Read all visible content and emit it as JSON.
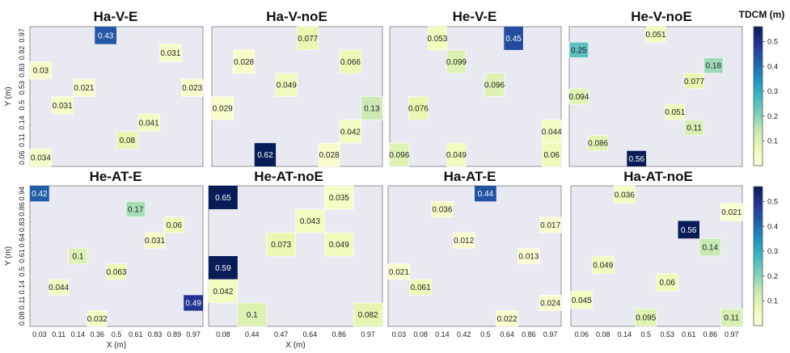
{
  "colorbar": {
    "title": "TDCM (m)",
    "ticks": [
      "0.1",
      "0.2",
      "0.3",
      "0.4",
      "0.5"
    ],
    "colors": [
      "#ffffd9",
      "#edf8b1",
      "#c7e9b4",
      "#7fcdbb",
      "#41b6c4",
      "#1d91c0",
      "#225ea8",
      "#253494",
      "#081d58"
    ],
    "range": [
      0,
      0.56
    ]
  },
  "chart_data": [
    {
      "type": "heatmap",
      "title": "Ha-V-E",
      "xticks": [],
      "yticks": [
        "0.97",
        "0.92",
        "0.83",
        "0.53",
        "0.5",
        "0.14",
        "0.11",
        "0.06"
      ],
      "xlabel": "",
      "ylabel": "Y (m)",
      "cells": [
        {
          "col": 3,
          "row": 0,
          "value": 0.43
        },
        {
          "col": 6,
          "row": 1,
          "value": 0.031
        },
        {
          "col": 0,
          "row": 2,
          "value": 0.03
        },
        {
          "col": 2,
          "row": 3,
          "value": 0.021
        },
        {
          "col": 7,
          "row": 3,
          "value": 0.023
        },
        {
          "col": 1,
          "row": 4,
          "value": 0.031
        },
        {
          "col": 5,
          "row": 5,
          "value": 0.041
        },
        {
          "col": 4,
          "row": 6,
          "value": 0.08
        },
        {
          "col": 0,
          "row": 7,
          "value": 0.034
        }
      ]
    },
    {
      "type": "heatmap",
      "title": "Ha-V-noE",
      "xticks": [],
      "yticks": [],
      "xlabel": "",
      "ylabel": "",
      "cells": [
        {
          "col": 4,
          "row": 0,
          "value": 0.077
        },
        {
          "col": 1,
          "row": 1,
          "value": 0.028
        },
        {
          "col": 6,
          "row": 1,
          "value": 0.066
        },
        {
          "col": 3,
          "row": 2,
          "value": 0.049
        },
        {
          "col": 0,
          "row": 3,
          "value": 0.029
        },
        {
          "col": 7,
          "row": 3,
          "value": 0.13
        },
        {
          "col": 6,
          "row": 4,
          "value": 0.042
        },
        {
          "col": 2,
          "row": 5,
          "value": 0.62
        },
        {
          "col": 5,
          "row": 5,
          "value": 0.028
        }
      ]
    },
    {
      "type": "heatmap",
      "title": "He-V-E",
      "xticks": [],
      "yticks": [],
      "xlabel": "",
      "ylabel": "",
      "cells": [
        {
          "col": 2,
          "row": 0,
          "value": 0.053
        },
        {
          "col": 6,
          "row": 0,
          "value": 0.45
        },
        {
          "col": 3,
          "row": 1,
          "value": 0.099
        },
        {
          "col": 5,
          "row": 2,
          "value": 0.096
        },
        {
          "col": 1,
          "row": 3,
          "value": 0.076
        },
        {
          "col": 8,
          "row": 4,
          "value": 0.044
        },
        {
          "col": 0,
          "row": 5,
          "value": 0.096
        },
        {
          "col": 3,
          "row": 5,
          "value": 0.049
        },
        {
          "col": 8,
          "row": 5,
          "value": 0.06
        }
      ]
    },
    {
      "type": "heatmap",
      "title": "He-V-noE",
      "xticks": [],
      "yticks": [],
      "xlabel": "",
      "ylabel": "",
      "cells": [
        {
          "col": 4,
          "row": 0,
          "value": 0.051
        },
        {
          "col": 0,
          "row": 1,
          "value": 0.25
        },
        {
          "col": 7,
          "row": 2,
          "value": 0.18
        },
        {
          "col": 6,
          "row": 3,
          "value": 0.077
        },
        {
          "col": 0,
          "row": 4,
          "value": 0.094
        },
        {
          "col": 5,
          "row": 5,
          "value": 0.051
        },
        {
          "col": 6,
          "row": 6,
          "value": 0.11
        },
        {
          "col": 1,
          "row": 7,
          "value": 0.086
        },
        {
          "col": 3,
          "row": 8,
          "value": 0.56
        }
      ]
    },
    {
      "type": "heatmap",
      "title": "He-AT-E",
      "xticks": [
        "0.03",
        "0.11",
        "0.14",
        "0.36",
        "0.5",
        "0.61",
        "0.83",
        "0.89",
        "0.97"
      ],
      "yticks": [
        "0.94",
        "0.86",
        "0.83",
        "0.64",
        "0.61",
        "0.5",
        "0.14",
        "0.11",
        "0.08"
      ],
      "xlabel": "X (m)",
      "ylabel": "Y (m)",
      "cells": [
        {
          "col": 0,
          "row": 0,
          "value": 0.42
        },
        {
          "col": 5,
          "row": 1,
          "value": 0.17
        },
        {
          "col": 7,
          "row": 2,
          "value": 0.06
        },
        {
          "col": 6,
          "row": 3,
          "value": 0.031
        },
        {
          "col": 2,
          "row": 4,
          "value": 0.1
        },
        {
          "col": 4,
          "row": 5,
          "value": 0.063
        },
        {
          "col": 1,
          "row": 6,
          "value": 0.044
        },
        {
          "col": 8,
          "row": 7,
          "value": 0.49
        },
        {
          "col": 3,
          "row": 8,
          "value": 0.032
        }
      ]
    },
    {
      "type": "heatmap",
      "title": "He-AT-noE",
      "xticks": [
        "0.08",
        "0.44",
        "0.47",
        "0.64",
        "0.86",
        "0.97"
      ],
      "yticks": [],
      "xlabel": "X (m)",
      "ylabel": "",
      "cells": [
        {
          "col": 0,
          "row": 0,
          "value": 0.65
        },
        {
          "col": 4,
          "row": 0,
          "value": 0.035
        },
        {
          "col": 3,
          "row": 1,
          "value": 0.043
        },
        {
          "col": 2,
          "row": 2,
          "value": 0.073
        },
        {
          "col": 4,
          "row": 2,
          "value": 0.049
        },
        {
          "col": 0,
          "row": 3,
          "value": 0.59
        },
        {
          "col": 0,
          "row": 4,
          "value": 0.042
        },
        {
          "col": 1,
          "row": 5,
          "value": 0.1
        },
        {
          "col": 5,
          "row": 5,
          "value": 0.082
        }
      ]
    },
    {
      "type": "heatmap",
      "title": "Ha-AT-E",
      "xticks": [
        "0.03",
        "0.08",
        "0.14",
        "0.42",
        "0.5",
        "0.64",
        "0.86",
        "0.97"
      ],
      "yticks": [],
      "xlabel": "",
      "ylabel": "",
      "cells": [
        {
          "col": 4,
          "row": 0,
          "value": 0.44
        },
        {
          "col": 2,
          "row": 1,
          "value": 0.036
        },
        {
          "col": 7,
          "row": 2,
          "value": 0.017
        },
        {
          "col": 3,
          "row": 3,
          "value": 0.012
        },
        {
          "col": 6,
          "row": 4,
          "value": 0.013
        },
        {
          "col": 0,
          "row": 5,
          "value": 0.021
        },
        {
          "col": 1,
          "row": 6,
          "value": 0.061
        },
        {
          "col": 7,
          "row": 7,
          "value": 0.024
        },
        {
          "col": 5,
          "row": 8,
          "value": 0.022
        }
      ]
    },
    {
      "type": "heatmap",
      "title": "Ha-AT-noE",
      "xticks": [
        "0.06",
        "0.08",
        "0.14",
        "0.5",
        "0.53",
        "0.61",
        "0.86",
        "0.97"
      ],
      "yticks": [],
      "xlabel": "",
      "ylabel": "",
      "cells": [
        {
          "col": 2,
          "row": 0,
          "value": 0.036
        },
        {
          "col": 7,
          "row": 1,
          "value": 0.021
        },
        {
          "col": 5,
          "row": 2,
          "value": 0.56
        },
        {
          "col": 6,
          "row": 3,
          "value": 0.14
        },
        {
          "col": 1,
          "row": 4,
          "value": 0.049
        },
        {
          "col": 4,
          "row": 5,
          "value": 0.06
        },
        {
          "col": 0,
          "row": 6,
          "value": 0.045
        },
        {
          "col": 3,
          "row": 7,
          "value": 0.095
        },
        {
          "col": 7,
          "row": 7,
          "value": 0.11
        }
      ]
    }
  ]
}
